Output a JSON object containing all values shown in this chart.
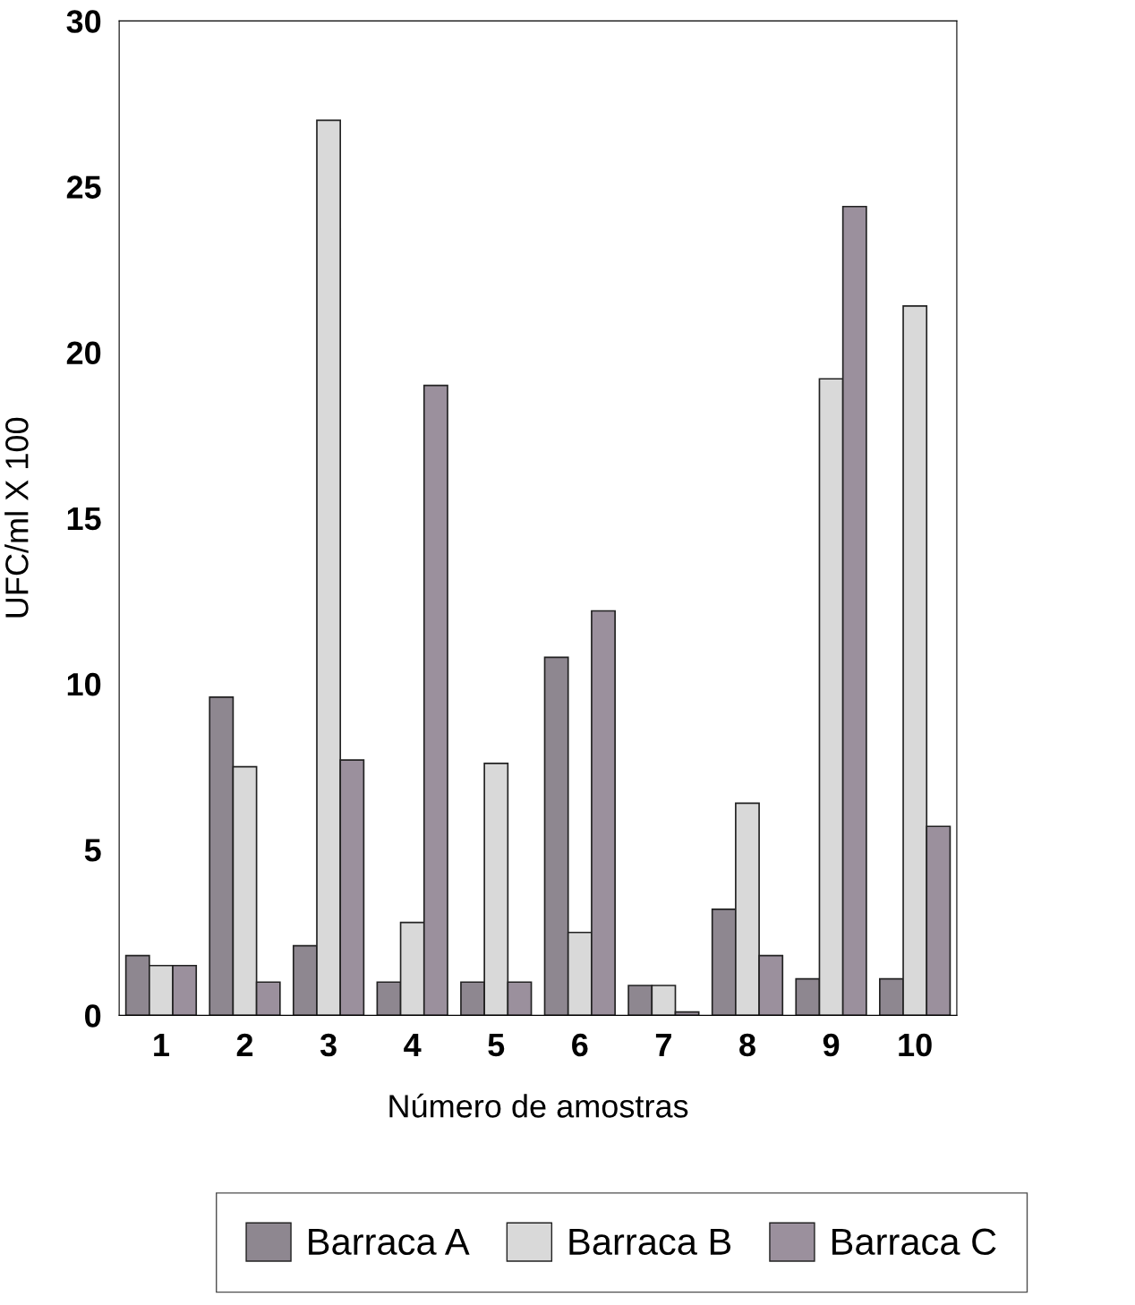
{
  "chart_data": {
    "type": "bar",
    "xlabel": "Número de amostras",
    "ylabel": "UFC/ml X 100",
    "categories": [
      "1",
      "2",
      "3",
      "4",
      "5",
      "6",
      "7",
      "8",
      "9",
      "10"
    ],
    "series": [
      {
        "name": "Barraca A",
        "color": "#8e8790",
        "values": [
          1.8,
          9.6,
          2.1,
          1.0,
          1.0,
          10.8,
          0.9,
          3.2,
          1.1,
          1.1
        ]
      },
      {
        "name": "Barraca B",
        "color": "#d9d9d9",
        "values": [
          1.5,
          7.5,
          27.0,
          2.8,
          7.6,
          2.5,
          0.9,
          6.4,
          19.2,
          21.4
        ]
      },
      {
        "name": "Barraca C",
        "color": "#9b909d",
        "values": [
          1.5,
          1.0,
          7.7,
          19.0,
          1.0,
          12.2,
          0.1,
          1.8,
          24.4,
          5.7
        ]
      }
    ],
    "ylim": [
      0,
      30
    ],
    "yticks": [
      0,
      5,
      10,
      15,
      20,
      25,
      30
    ],
    "grid": false,
    "legend": "bottom"
  }
}
